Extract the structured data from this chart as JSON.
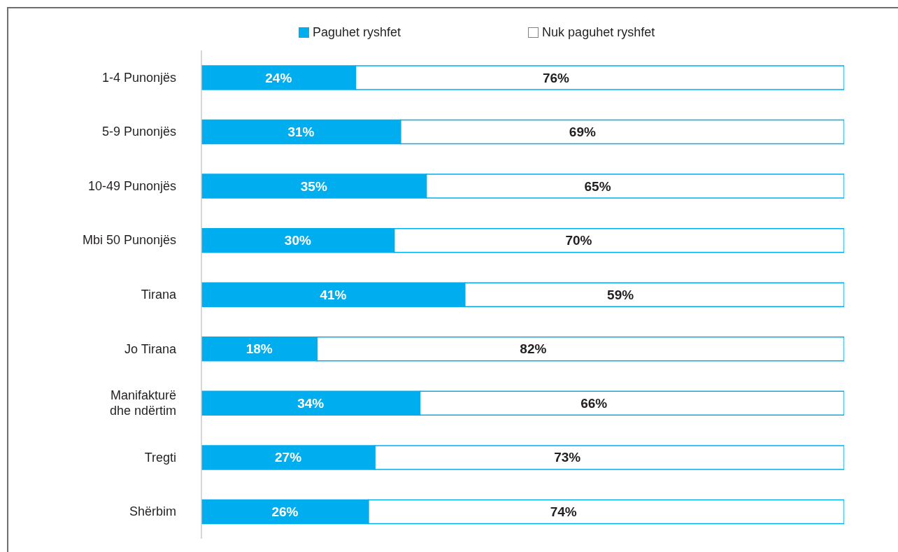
{
  "chart_data": {
    "type": "bar",
    "orientation": "horizontal",
    "stacked": true,
    "categories": [
      "1-4 Punonjës",
      "5-9 Punonjës",
      "10-49 Punonjës",
      "Mbi 50 Punonjës",
      "Tirana",
      "Jo Tirana",
      "Manifakturë dhe ndërtim",
      "Tregti",
      "Shërbim"
    ],
    "series": [
      {
        "name": "Paguhet ryshfet",
        "color": "#00aeef",
        "values": [
          24,
          31,
          35,
          30,
          41,
          18,
          34,
          27,
          26
        ],
        "value_labels": [
          "24%",
          "31%",
          "35%",
          "30%",
          "41%",
          "18%",
          "34%",
          "27%",
          "26%"
        ]
      },
      {
        "name": "Nuk paguhet ryshfet",
        "color": "#ffffff",
        "values": [
          76,
          69,
          65,
          70,
          59,
          82,
          66,
          73,
          74
        ],
        "value_labels": [
          "76%",
          "69%",
          "65%",
          "70%",
          "59%",
          "82%",
          "66%",
          "73%",
          "74%"
        ]
      }
    ],
    "xlim": [
      0,
      100
    ],
    "legend": "top",
    "tick_labels": "y"
  }
}
